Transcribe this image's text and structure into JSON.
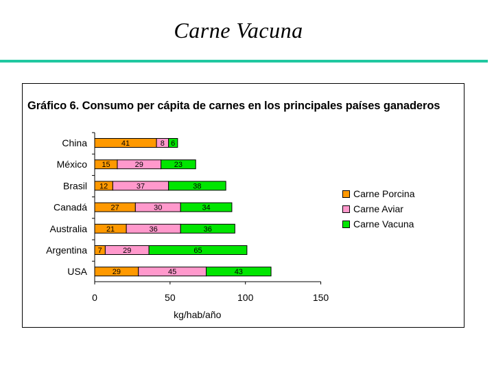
{
  "slide": {
    "title": "Carne Vacuna"
  },
  "colors": {
    "rule": "#20c8a0",
    "porcina": "#ff9900",
    "aviar": "#ff99cc",
    "vacuna": "#00e600"
  },
  "chart_data": {
    "type": "bar",
    "orientation": "horizontal",
    "stacked": true,
    "title": "Gráfico 6. Consumo per cápita de carnes en los principales países ganaderos",
    "xlabel": "kg/hab/año",
    "ylabel": "",
    "xlim": [
      0,
      150
    ],
    "xticks": [
      "0",
      "50",
      "100",
      "150"
    ],
    "grid": false,
    "legend_position": "right",
    "categories": [
      "China",
      "México",
      "Brasil",
      "Canadá",
      "Australia",
      "Argentina",
      "USA"
    ],
    "series": [
      {
        "name": "Carne Porcina",
        "color": "#ff9900",
        "values": [
          41,
          15,
          12,
          27,
          21,
          7,
          29
        ]
      },
      {
        "name": "Carne Aviar",
        "color": "#ff99cc",
        "values": [
          8,
          29,
          37,
          30,
          36,
          29,
          45
        ]
      },
      {
        "name": "Carne Vacuna",
        "color": "#00e600",
        "values": [
          6,
          23,
          38,
          34,
          36,
          65,
          43
        ]
      }
    ]
  }
}
